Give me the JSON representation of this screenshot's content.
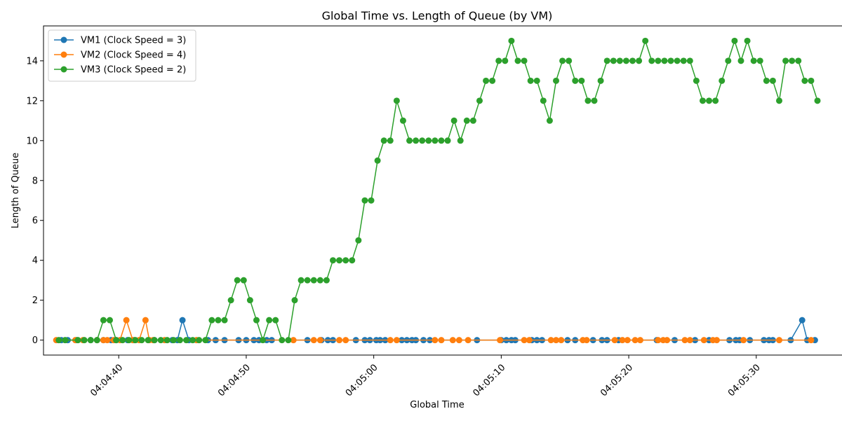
{
  "chart_data": {
    "type": "line",
    "title": "Global Time vs. Length of Queue (by VM)",
    "xlabel": "Global Time",
    "ylabel": "Length of Queue",
    "x_range": [
      "04:04:34.1",
      "04:05:37.0"
    ],
    "ylim": [
      -0.75,
      15.75
    ],
    "x_ticks": [
      "04:04:40",
      "04:04:50",
      "04:05:00",
      "04:05:10",
      "04:05:20",
      "04:05:30"
    ],
    "y_ticks": [
      0,
      2,
      4,
      6,
      8,
      10,
      12,
      14
    ],
    "grid": false,
    "legend_position": "upper-left",
    "series": [
      {
        "name": "VM1 (Clock Speed = 3)",
        "color": "#1f77b4",
        "x": [
          "04:04:35.5",
          "04:04:36.0",
          "04:04:36.7",
          "04:04:37.8",
          "04:04:38.3",
          "04:04:38.8",
          "04:04:39.4",
          "04:04:39.8",
          "04:04:40.7",
          "04:04:41.2",
          "04:04:42.8",
          "04:04:44.2",
          "04:04:44.6",
          "04:04:45.0",
          "04:04:45.5",
          "04:04:47.0",
          "04:04:47.6",
          "04:04:48.3",
          "04:04:49.4",
          "04:04:50.0",
          "04:04:50.6",
          "04:04:51.0",
          "04:04:51.6",
          "04:04:52.0",
          "04:04:54.8",
          "04:04:55.9",
          "04:04:56.4",
          "04:04:56.8",
          "04:04:58.6",
          "04:04:59.3",
          "04:04:59.7",
          "04:05:00.2",
          "04:05:00.5",
          "04:05:00.9",
          "04:05:02.2",
          "04:05:02.6",
          "04:05:03.0",
          "04:05:03.3",
          "04:05:03.9",
          "04:05:04.4",
          "04:05:08.1",
          "04:05:10.0",
          "04:05:10.4",
          "04:05:10.8",
          "04:05:11.1",
          "04:05:12.4",
          "04:05:12.8",
          "04:05:13.2",
          "04:05:15.2",
          "04:05:15.8",
          "04:05:17.2",
          "04:05:17.9",
          "04:05:18.3",
          "04:05:19.2",
          "04:05:22.2",
          "04:05:23.6",
          "04:05:25.2",
          "04:05:26.3",
          "04:05:27.9",
          "04:05:28.4",
          "04:05:28.7",
          "04:05:29.5",
          "04:05:30.6",
          "04:05:31.0",
          "04:05:31.3",
          "04:05:32.7",
          "04:05:33.6",
          "04:05:34.0",
          "04:05:34.6"
        ],
        "y": [
          0,
          0,
          0,
          0,
          0,
          0,
          0,
          0,
          0,
          0,
          0,
          0,
          0,
          1,
          0,
          0,
          0,
          0,
          0,
          0,
          0,
          0,
          0,
          0,
          0,
          0,
          0,
          0,
          0,
          0,
          0,
          0,
          0,
          0,
          0,
          0,
          0,
          0,
          0,
          0,
          0,
          0,
          0,
          0,
          0,
          0,
          0,
          0,
          0,
          0,
          0,
          0,
          0,
          0,
          0,
          0,
          0,
          0,
          0,
          0,
          0,
          0,
          0,
          0,
          0,
          0,
          1,
          0,
          0
        ]
      },
      {
        "name": "VM2 (Clock Speed = 4)",
        "color": "#ff7f0e",
        "x": [
          "04:04:35.1",
          "04:04:36.6",
          "04:04:37.2",
          "04:04:38.3",
          "04:04:38.8",
          "04:04:39.1",
          "04:04:39.6",
          "04:04:40.1",
          "04:04:40.6",
          "04:04:41.1",
          "04:04:41.6",
          "04:04:42.1",
          "04:04:42.4",
          "04:04:42.7",
          "04:04:43.6",
          "04:04:46.1",
          "04:04:53.7",
          "04:04:55.3",
          "04:04:55.8",
          "04:04:57.3",
          "04:04:57.8",
          "04:05:01.3",
          "04:05:01.8",
          "04:05:04.8",
          "04:05:05.3",
          "04:05:06.2",
          "04:05:06.7",
          "04:05:07.4",
          "04:05:09.9",
          "04:05:11.8",
          "04:05:12.2",
          "04:05:13.9",
          "04:05:14.3",
          "04:05:14.7",
          "04:05:16.4",
          "04:05:16.7",
          "04:05:18.9",
          "04:05:19.5",
          "04:05:19.9",
          "04:05:20.5",
          "04:05:20.9",
          "04:05:22.3",
          "04:05:22.7",
          "04:05:23.0",
          "04:05:24.4",
          "04:05:24.8",
          "04:05:25.9",
          "04:05:26.6",
          "04:05:26.9",
          "04:05:29.0",
          "04:05:31.8",
          "04:05:34.3"
        ],
        "y": [
          0,
          0,
          0,
          0,
          0,
          0,
          0,
          0,
          1,
          0,
          0,
          1,
          0,
          0,
          0,
          0,
          0,
          0,
          0,
          0,
          0,
          0,
          0,
          0,
          0,
          0,
          0,
          0,
          0,
          0,
          0,
          0,
          0,
          0,
          0,
          0,
          0,
          0,
          0,
          0,
          0,
          0,
          0,
          0,
          0,
          0,
          0,
          0,
          0,
          0,
          0,
          0
        ]
      },
      {
        "name": "VM3 (Clock Speed = 2)",
        "color": "#2ca02c",
        "x": [
          "04:04:35.3",
          "04:04:35.8",
          "04:04:36.8",
          "04:04:37.3",
          "04:04:37.8",
          "04:04:38.3",
          "04:04:38.8",
          "04:04:39.3",
          "04:04:39.8",
          "04:04:40.3",
          "04:04:40.8",
          "04:04:41.3",
          "04:04:41.8",
          "04:04:42.3",
          "04:04:42.8",
          "04:04:43.3",
          "04:04:43.8",
          "04:04:44.3",
          "04:04:44.8",
          "04:04:45.3",
          "04:04:45.8",
          "04:04:46.3",
          "04:04:46.8",
          "04:04:47.3",
          "04:04:47.8",
          "04:04:48.3",
          "04:04:48.8",
          "04:04:49.3",
          "04:04:49.8",
          "04:04:50.3",
          "04:04:50.8",
          "04:04:51.3",
          "04:04:51.8",
          "04:04:52.3",
          "04:04:52.8",
          "04:04:53.3",
          "04:04:53.8",
          "04:04:54.3",
          "04:04:54.8",
          "04:04:55.3",
          "04:04:55.8",
          "04:04:56.3",
          "04:04:56.8",
          "04:04:57.3",
          "04:04:57.8",
          "04:04:58.3",
          "04:04:58.8",
          "04:04:59.3",
          "04:04:59.8",
          "04:05:00.3",
          "04:05:00.8",
          "04:05:01.3",
          "04:05:01.8",
          "04:05:02.3",
          "04:05:02.8",
          "04:05:03.3",
          "04:05:03.8",
          "04:05:04.3",
          "04:05:04.8",
          "04:05:05.3",
          "04:05:05.8",
          "04:05:06.3",
          "04:05:06.8",
          "04:05:07.3",
          "04:05:07.8",
          "04:05:08.3",
          "04:05:08.8",
          "04:05:09.3",
          "04:05:09.8",
          "04:05:10.3",
          "04:05:10.8",
          "04:05:11.3",
          "04:05:11.8",
          "04:05:12.3",
          "04:05:12.8",
          "04:05:13.3",
          "04:05:13.8",
          "04:05:14.3",
          "04:05:14.8",
          "04:05:15.3",
          "04:05:15.8",
          "04:05:16.3",
          "04:05:16.8",
          "04:05:17.3",
          "04:05:17.8",
          "04:05:18.3",
          "04:05:18.8",
          "04:05:19.3",
          "04:05:19.8",
          "04:05:20.3",
          "04:05:20.8",
          "04:05:21.3",
          "04:05:21.8",
          "04:05:22.3",
          "04:05:22.8",
          "04:05:23.3",
          "04:05:23.8",
          "04:05:24.3",
          "04:05:24.8",
          "04:05:25.3",
          "04:05:25.8",
          "04:05:26.3",
          "04:05:26.8",
          "04:05:27.3",
          "04:05:27.8",
          "04:05:28.3",
          "04:05:28.8",
          "04:05:29.3",
          "04:05:29.8",
          "04:05:30.3",
          "04:05:30.8",
          "04:05:31.3",
          "04:05:31.8",
          "04:05:32.3",
          "04:05:32.8",
          "04:05:33.3",
          "04:05:33.8",
          "04:05:34.3",
          "04:05:34.8"
        ],
        "y": [
          0,
          0,
          0,
          0,
          0,
          0,
          1,
          1,
          0,
          0,
          0,
          0,
          0,
          0,
          0,
          0,
          0,
          0,
          0,
          0,
          0,
          0,
          0,
          1,
          1,
          1,
          2,
          3,
          3,
          2,
          1,
          0,
          1,
          1,
          0,
          0,
          2,
          3,
          3,
          3,
          3,
          3,
          4,
          4,
          4,
          4,
          5,
          7,
          7,
          9,
          10,
          10,
          12,
          11,
          10,
          10,
          10,
          10,
          10,
          10,
          10,
          11,
          10,
          11,
          11,
          12,
          13,
          13,
          14,
          14,
          15,
          14,
          14,
          13,
          13,
          12,
          11,
          13,
          14,
          14,
          13,
          13,
          12,
          12,
          13,
          14,
          14,
          14,
          14,
          14,
          14,
          15,
          14,
          14,
          14,
          14,
          14,
          14,
          14,
          13,
          12,
          12,
          12,
          13,
          14,
          15,
          14,
          15,
          14,
          14,
          13,
          13,
          12,
          14,
          14,
          14,
          13,
          13,
          12
        ]
      }
    ]
  }
}
